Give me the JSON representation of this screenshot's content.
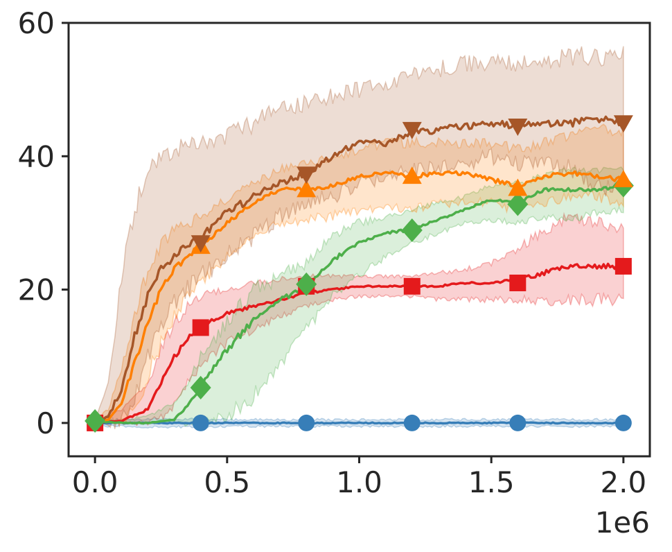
{
  "chart_data": {
    "type": "line",
    "title": "",
    "xlabel": "",
    "ylabel": "",
    "x_offset_label": "1e6",
    "xlim": [
      -0.1,
      2.1
    ],
    "ylim": [
      -5,
      60
    ],
    "x_ticks": [
      0.0,
      0.5,
      1.0,
      1.5,
      2.0
    ],
    "x_tick_labels": [
      "0.0",
      "0.5",
      "1.0",
      "1.5",
      "2.0"
    ],
    "y_ticks": [
      0,
      20,
      40,
      60
    ],
    "y_tick_labels": [
      "0",
      "20",
      "40",
      "60"
    ],
    "grid": false,
    "legend": "none",
    "series": [
      {
        "color": "#377eb8",
        "marker": "circle",
        "x": [
          0.0,
          0.1,
          0.2,
          0.3,
          0.4,
          0.5,
          0.6,
          0.7,
          0.8,
          0.9,
          1.0,
          1.1,
          1.2,
          1.3,
          1.4,
          1.5,
          1.6,
          1.7,
          1.8,
          1.9,
          2.0
        ],
        "y": [
          0,
          0,
          0,
          0,
          0,
          0,
          0,
          0,
          0,
          0,
          0,
          0,
          0,
          0,
          0,
          0,
          0,
          0,
          0,
          0,
          0
        ],
        "lower": [
          -0.5,
          -0.5,
          -0.6,
          -0.6,
          -0.6,
          -0.5,
          -0.5,
          -0.5,
          -0.5,
          -0.5,
          -0.5,
          -0.5,
          -0.5,
          -0.5,
          -0.5,
          -0.5,
          -0.5,
          -0.5,
          -0.5,
          -0.5,
          -0.5
        ],
        "upper": [
          0.5,
          0.5,
          0.6,
          0.6,
          0.6,
          0.5,
          0.5,
          0.5,
          0.5,
          0.5,
          0.5,
          0.5,
          0.5,
          0.5,
          0.5,
          0.5,
          0.5,
          0.5,
          0.5,
          0.5,
          0.5
        ],
        "marker_x": [
          0.4,
          0.8,
          1.2,
          1.6,
          2.0
        ],
        "marker_y": [
          0,
          0,
          0,
          0,
          0
        ]
      },
      {
        "color": "#e41a1c",
        "marker": "square",
        "x": [
          0.0,
          0.1,
          0.2,
          0.25,
          0.3,
          0.35,
          0.4,
          0.5,
          0.6,
          0.7,
          0.8,
          0.9,
          1.0,
          1.1,
          1.2,
          1.3,
          1.4,
          1.5,
          1.6,
          1.7,
          1.8,
          1.9,
          2.0
        ],
        "y": [
          0,
          0.3,
          2,
          6,
          10,
          12.5,
          14.5,
          16.5,
          17.5,
          18.5,
          19.5,
          20,
          20.5,
          20.5,
          20.5,
          20.5,
          21,
          21,
          21.5,
          22.5,
          23.5,
          23.5,
          23.5
        ],
        "lower": [
          0,
          0,
          0,
          1,
          3,
          6,
          9,
          12,
          14,
          16,
          17.5,
          18.5,
          19,
          19,
          19,
          18.5,
          18.5,
          18.5,
          18.5,
          18.5,
          18.5,
          18.5,
          18.5
        ],
        "upper": [
          0.5,
          2,
          6,
          11,
          15,
          17.5,
          19,
          20,
          21,
          21.5,
          22,
          22,
          22,
          22,
          22,
          22.5,
          23,
          24,
          26,
          29,
          31,
          30,
          29
        ],
        "marker_x": [
          0.0,
          0.4,
          0.8,
          1.2,
          1.6,
          2.0
        ],
        "marker_y": [
          0,
          14.3,
          20.5,
          20.5,
          21,
          23.5
        ]
      },
      {
        "color": "#4daf4a",
        "marker": "diamond",
        "x": [
          0.0,
          0.1,
          0.2,
          0.3,
          0.35,
          0.4,
          0.5,
          0.6,
          0.7,
          0.8,
          0.9,
          1.0,
          1.1,
          1.2,
          1.3,
          1.4,
          1.5,
          1.6,
          1.7,
          1.8,
          1.9,
          2.0
        ],
        "y": [
          0.3,
          0,
          0,
          0.5,
          2.5,
          5.5,
          11,
          15.5,
          18.5,
          20.5,
          24.5,
          27,
          28.5,
          29,
          30.5,
          32,
          33.5,
          33,
          35,
          35,
          35,
          35.5
        ],
        "lower": [
          0,
          0,
          0,
          0,
          0,
          0,
          1,
          4,
          9,
          14,
          19,
          22,
          25,
          27,
          28.5,
          30,
          30.5,
          30,
          31,
          30.5,
          31.5,
          32
        ],
        "upper": [
          0.5,
          0.5,
          1,
          3,
          6,
          10,
          15,
          20,
          22,
          24,
          28,
          30,
          31,
          32,
          33,
          34,
          35.5,
          36,
          37,
          38,
          38,
          38
        ],
        "marker_x": [
          0.0,
          0.4,
          0.8,
          1.2,
          1.6,
          2.0
        ],
        "marker_y": [
          0.3,
          5.3,
          20.8,
          28.9,
          32.8,
          35.6
        ]
      },
      {
        "color": "#ff7f00",
        "marker": "triangle-up",
        "x": [
          0.0,
          0.05,
          0.1,
          0.15,
          0.2,
          0.25,
          0.3,
          0.35,
          0.4,
          0.5,
          0.6,
          0.7,
          0.8,
          0.9,
          1.0,
          1.1,
          1.2,
          1.3,
          1.4,
          1.5,
          1.6,
          1.7,
          1.8,
          1.9,
          2.0
        ],
        "y": [
          0,
          0.5,
          3,
          9,
          15,
          20,
          23,
          25,
          26.5,
          30,
          33,
          35,
          35,
          35.5,
          37,
          37.5,
          37,
          37.5,
          37.5,
          36.5,
          35.5,
          37,
          37.5,
          37,
          36.5
        ],
        "lower": [
          0,
          0,
          0,
          2,
          7,
          12,
          16,
          19,
          21,
          25,
          28,
          30,
          30.5,
          31,
          32,
          32.5,
          32,
          33,
          33,
          33,
          32,
          33,
          34,
          34,
          33
        ],
        "upper": [
          0.5,
          2,
          8,
          16,
          23,
          27,
          29,
          30,
          31,
          33.5,
          36,
          38,
          39,
          40,
          41,
          42,
          42,
          42,
          42,
          42,
          41,
          42,
          43,
          44,
          44
        ],
        "marker_x": [
          0.4,
          0.8,
          1.2,
          1.6,
          2.0
        ],
        "marker_y": [
          26.5,
          35.0,
          37.0,
          35.2,
          36.5
        ]
      },
      {
        "color": "#a65628",
        "marker": "triangle-down",
        "x": [
          0.0,
          0.05,
          0.1,
          0.15,
          0.2,
          0.25,
          0.3,
          0.35,
          0.4,
          0.5,
          0.6,
          0.7,
          0.8,
          0.9,
          1.0,
          1.1,
          1.2,
          1.3,
          1.4,
          1.5,
          1.6,
          1.7,
          1.8,
          1.9,
          2.0
        ],
        "y": [
          0,
          1,
          5,
          13,
          19,
          23,
          25,
          26.5,
          28,
          31.5,
          34,
          36,
          37.5,
          40,
          42,
          42,
          43.5,
          44,
          44.5,
          45,
          44.5,
          45,
          45,
          45.5,
          45
        ],
        "lower": [
          0,
          0,
          0,
          4,
          10,
          15,
          18,
          20,
          22,
          25,
          28,
          31,
          33,
          34,
          36,
          37,
          38,
          38,
          39,
          40,
          39,
          39,
          38,
          36,
          34
        ],
        "upper": [
          0.5,
          6,
          22,
          32,
          38,
          40,
          41,
          42,
          42,
          43,
          45,
          47,
          48,
          49,
          50,
          51,
          52,
          53,
          54,
          54,
          54,
          54,
          55,
          55,
          55
        ],
        "marker_x": [
          0.4,
          0.8,
          1.2,
          1.6,
          2.0
        ],
        "marker_y": [
          27.0,
          37.3,
          44.0,
          44.5,
          45.0
        ]
      }
    ]
  }
}
